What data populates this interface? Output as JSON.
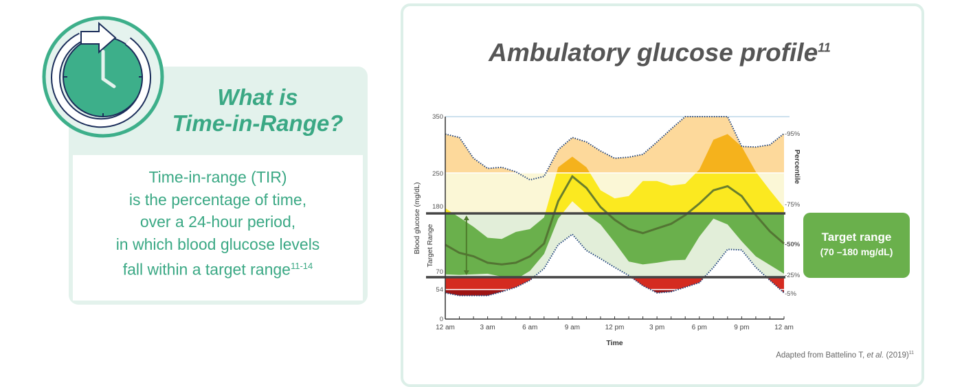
{
  "left": {
    "icon": "clock-refresh-icon",
    "title_line1": "What is",
    "title_line2": "Time-in-Range?",
    "body_lines": [
      "Time-in-range (TIR)",
      "is the percentage of time,",
      "over a 24-hour period,",
      "in which blood glucose levels",
      "fall within a target range"
    ],
    "body_ref": "11-14"
  },
  "right": {
    "title": "Ambulatory glucose profile",
    "title_ref": "11",
    "target_box": {
      "line1": "Target range",
      "line2": "(70 –180 mg/dL)"
    },
    "caption_prefix": "Adapted from Battelino T, ",
    "caption_italic": "et al.",
    "caption_suffix": " (2019)",
    "caption_ref": "11"
  },
  "colors": {
    "green_text": "#3aa884",
    "very_high_inner": "#f5b21c",
    "very_high_outer": "#fdd99b",
    "high_inner": "#fbe920",
    "high_outer": "#fbf7d6",
    "in_range_inner": "#6ab04c",
    "in_range_outer": "#e2eed9",
    "low": "#d42b20",
    "very_low": "#9e1414",
    "median_line": "#4f6b2f"
  },
  "chart_data": {
    "type": "area",
    "xlabel": "Time",
    "ylabel": "Blood glucose (mg/dL)",
    "secondary_ylabel": "Target Range",
    "right_label": "Percentile",
    "x_ticks": [
      "12 am",
      "3 am",
      "6 am",
      "9 am",
      "12 pm",
      "3 pm",
      "6 pm",
      "9 pm",
      "12 am"
    ],
    "y_ticks": [
      350,
      250,
      180,
      70,
      54,
      0
    ],
    "ylim": [
      0,
      350
    ],
    "target_range": [
      70,
      180
    ],
    "hours": [
      0,
      1,
      2,
      3,
      4,
      5,
      6,
      7,
      8,
      9,
      10,
      11,
      12,
      13,
      14,
      15,
      16,
      17,
      18,
      19,
      20,
      21,
      22,
      23,
      24
    ],
    "series": [
      {
        "name": "95%",
        "values": [
          319,
          313,
          276,
          258,
          260,
          252,
          238,
          244,
          291,
          313,
          305,
          289,
          276,
          278,
          283,
          305,
          328,
          350,
          350,
          350,
          350,
          297,
          296,
          300,
          320
        ]
      },
      {
        "name": "75%",
        "values": [
          189,
          173,
          157,
          138,
          136,
          148,
          153,
          173,
          260,
          279,
          260,
          220,
          206,
          210,
          236,
          236,
          228,
          231,
          256,
          309,
          319,
          297,
          252,
          220,
          190
        ]
      },
      {
        "name": "50%",
        "values": [
          126,
          112,
          106,
          95,
          92,
          95,
          106,
          128,
          201,
          244,
          224,
          191,
          169,
          153,
          146,
          154,
          162,
          177,
          197,
          220,
          227,
          210,
          177,
          149,
          128
        ]
      },
      {
        "name": "25%",
        "values": [
          75,
          74,
          75,
          76,
          71,
          67,
          81,
          110,
          171,
          201,
          179,
          161,
          130,
          97,
          92,
          95,
          99,
          100,
          140,
          171,
          161,
          132,
          106,
          91,
          76
        ]
      },
      {
        "name": "5%",
        "values": [
          48,
          43,
          43,
          43,
          50,
          57,
          66,
          85,
          126,
          144,
          116,
          102,
          87,
          73,
          59,
          48,
          50,
          57,
          63,
          87,
          118,
          117,
          87,
          66,
          48
        ]
      }
    ]
  }
}
